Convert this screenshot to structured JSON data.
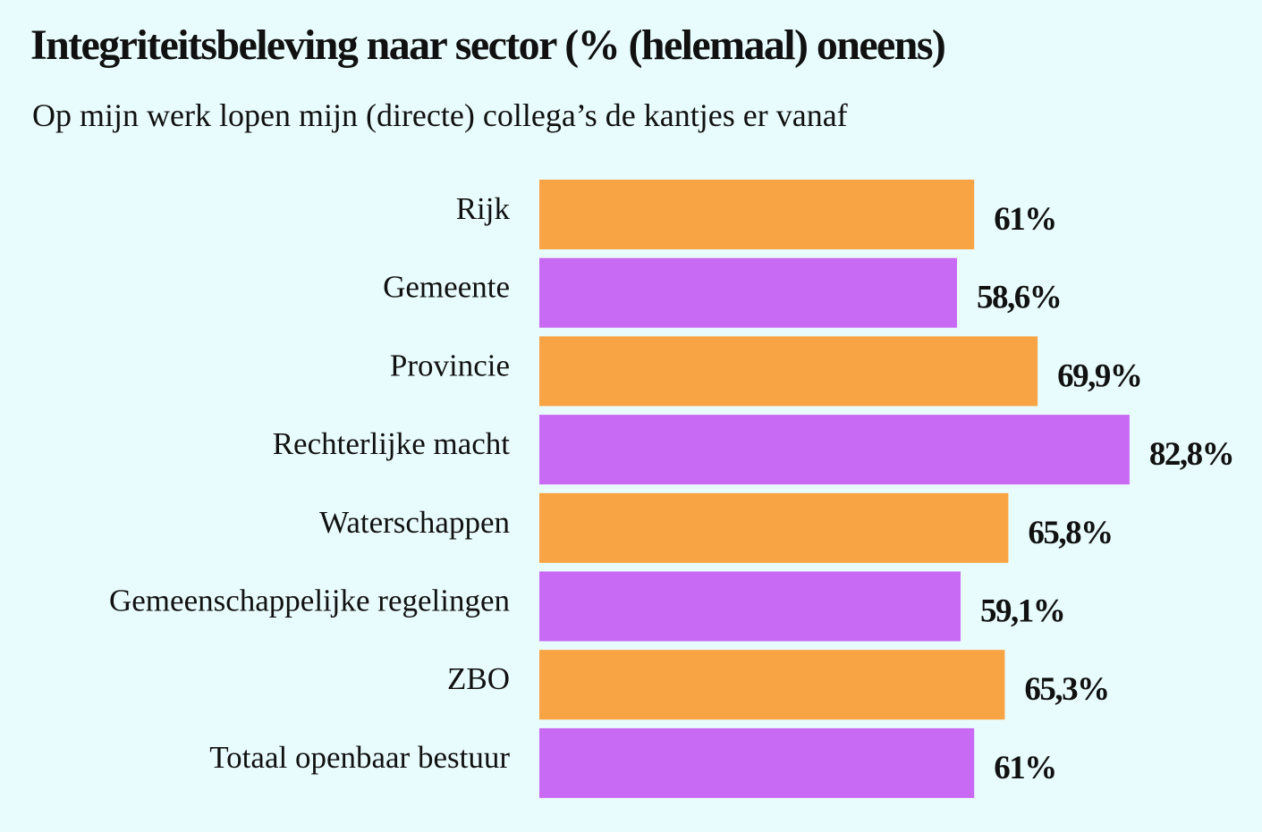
{
  "chart_data": {
    "type": "bar",
    "orientation": "horizontal",
    "title": "Integriteitsbeleving naar sector (% (helemaal) oneens)",
    "subtitle": "Op mijn werk lopen mijn (directe) collega’s de kantjes er vanaf",
    "categories": [
      "Rijk",
      "Gemeente",
      "Provincie",
      "Rechterlijke macht",
      "Waterschappen",
      "Gemeenschappelijke regelingen",
      "ZBO",
      "Totaal openbaar bestuur"
    ],
    "values": [
      61,
      58.6,
      69.9,
      82.8,
      65.8,
      59.1,
      65.3,
      61
    ],
    "value_labels": [
      "61%",
      "58,6%",
      "69,9%",
      "82,8%",
      "65,8%",
      "59,1%",
      "65,3%",
      "61%"
    ],
    "unit": "%",
    "xlim": [
      0,
      100
    ],
    "grid": false,
    "legend": "none",
    "colors": {
      "background": "#e9fcfd",
      "bar_alternating": [
        "#f8a444",
        "#c96af5"
      ],
      "text": "#111111"
    }
  }
}
